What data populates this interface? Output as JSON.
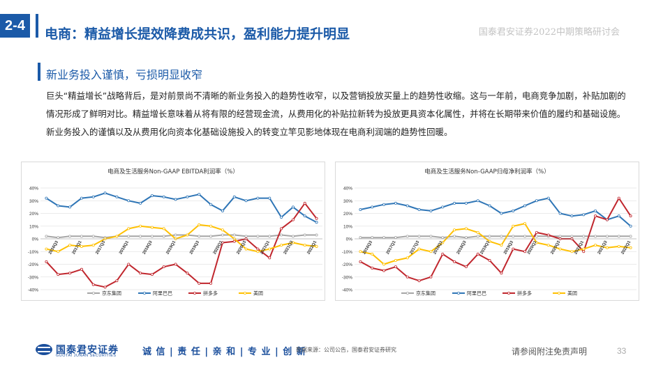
{
  "header": {
    "section": "2-4",
    "title": "电商：精益增长提效降费成共识，盈利能力提升明显",
    "brand": "国泰君安证券2022中期策略研讨会"
  },
  "subtitle": "新业务投入谨慎，亏损明显收窄",
  "body": "巨头“精益增长”战略背后，是对前景尚不清晰的新业务投入的趋势性收窄，以及营销投放买量上的趋势性收缩。这与一年前，电商竞争加剧，补贴加剧的情况形成了鲜明对比。精益增长意味着从将有限的经营现金流，从费用化的补贴拉新转为投放更具资本化属性，并将在长期带来价值的履约和基础设施。新业务投入的谨慎以及从费用化向资本化基础设施投入的转变立竿见影地体现在电商利润端的趋势性回暖。",
  "footer": {
    "logo_name": "国泰君安证券",
    "logo_en": "GUOTAI JUNAN SECURITIES",
    "slogan": "诚 信 | 责 任 | 亲 和 | 专 业 | 创 新",
    "source": "数据来源：公司公告，国泰君安证券研究",
    "disclaimer": "请参阅附注免责声明",
    "page": "33"
  },
  "colors": {
    "brand_blue": "#1b5aa8",
    "jd": "#a6a6a6",
    "alibaba": "#2e75b6",
    "pdd": "#c0262d",
    "meituan": "#ffc000"
  },
  "chart_data": [
    {
      "type": "line",
      "title": "电商及生活服务Non-GAAP EBITDA利润率（%）",
      "categories": [
        "2016Q3",
        "2017Q1",
        "2017Q3",
        "2018Q1",
        "2018Q3",
        "2019Q1",
        "2019Q3",
        "2020Q1",
        "2020Q3",
        "2021Q1",
        "2021Q3",
        "2022Q1"
      ],
      "x": [
        "2016Q2",
        "2016Q3",
        "2016Q4",
        "2017Q1",
        "2017Q2",
        "2017Q3",
        "2017Q4",
        "2018Q1",
        "2018Q2",
        "2018Q3",
        "2018Q4",
        "2019Q1",
        "2019Q2",
        "2019Q3",
        "2019Q4",
        "2020Q1",
        "2020Q2",
        "2020Q3",
        "2020Q4",
        "2021Q1",
        "2021Q2",
        "2021Q3",
        "2021Q4",
        "2022Q1"
      ],
      "ylim": [
        -40,
        40
      ],
      "yticks": [
        "40%",
        "30%",
        "20%",
        "10%",
        "0%",
        "-10%",
        "-20%",
        "-30%",
        "-40%"
      ],
      "series": [
        {
          "name": "京东集团",
          "color": "#a6a6a6",
          "values": [
            2,
            1,
            2,
            2,
            2,
            1,
            2,
            2,
            2,
            2,
            2,
            3,
            3,
            2,
            2,
            3,
            3,
            2,
            2,
            2,
            3,
            2,
            3,
            3
          ]
        },
        {
          "name": "阿里巴巴",
          "color": "#2e75b6",
          "values": [
            32,
            26,
            25,
            32,
            33,
            36,
            33,
            30,
            28,
            34,
            33,
            31,
            33,
            35,
            27,
            22,
            33,
            30,
            32,
            32,
            17,
            25,
            18,
            13
          ]
        },
        {
          "name": "拼多多",
          "color": "#c0262d",
          "values": [
            -18,
            -28,
            -27,
            -24,
            -36,
            -38,
            -33,
            -20,
            -27,
            -28,
            -22,
            -20,
            -27,
            -35,
            -35,
            -3,
            -2,
            0,
            -8,
            -15,
            8,
            15,
            28,
            16
          ]
        },
        {
          "name": "美团",
          "color": "#ffc000",
          "values": [
            -8,
            -10,
            -5,
            -6,
            -5,
            0,
            2,
            8,
            10,
            9,
            8,
            0,
            3,
            11,
            10,
            7,
            0,
            -8,
            -10,
            -8,
            -5,
            -3,
            -5,
            -6
          ]
        }
      ],
      "legend": "bottom"
    },
    {
      "type": "line",
      "title": "电商及生活服务Non-GAAP归母净利润率（%）",
      "categories": [
        "2016Q3",
        "2017Q1",
        "2017Q3",
        "2018Q1",
        "2018Q3",
        "2019Q1",
        "2019Q3",
        "2020Q1",
        "2020Q3",
        "2021Q1",
        "2021Q3",
        "2022Q1"
      ],
      "x": [
        "2016Q2",
        "2016Q3",
        "2016Q4",
        "2017Q1",
        "2017Q2",
        "2017Q3",
        "2017Q4",
        "2018Q1",
        "2018Q2",
        "2018Q3",
        "2018Q4",
        "2019Q1",
        "2019Q2",
        "2019Q3",
        "2019Q4",
        "2020Q1",
        "2020Q2",
        "2020Q3",
        "2020Q4",
        "2021Q1",
        "2021Q2",
        "2021Q3",
        "2021Q4",
        "2022Q1"
      ],
      "ylim": [
        -40,
        40
      ],
      "yticks": [
        "40%",
        "30%",
        "20%",
        "10%",
        "0%",
        "-10%",
        "-20%",
        "-30%",
        "-40%"
      ],
      "series": [
        {
          "name": "京东集团",
          "color": "#a6a6a6",
          "values": [
            1,
            1,
            1,
            1,
            2,
            2,
            2,
            1,
            2,
            1,
            2,
            2,
            2,
            2,
            2,
            2,
            2,
            2,
            2,
            2,
            2,
            2,
            2,
            2
          ]
        },
        {
          "name": "阿里巴巴",
          "color": "#2e75b6",
          "values": [
            23,
            25,
            27,
            28,
            26,
            23,
            22,
            25,
            28,
            28,
            30,
            26,
            20,
            22,
            26,
            30,
            32,
            20,
            18,
            19,
            22,
            15,
            18,
            10
          ]
        },
        {
          "name": "拼多多",
          "color": "#c0262d",
          "values": [
            -18,
            -23,
            -25,
            -22,
            -30,
            -33,
            -30,
            -12,
            -18,
            -22,
            -12,
            -17,
            -27,
            -8,
            -10,
            5,
            3,
            0,
            0,
            -10,
            18,
            15,
            32,
            18
          ]
        },
        {
          "name": "美团",
          "color": "#ffc000",
          "values": [
            -10,
            -12,
            -20,
            -17,
            -15,
            -8,
            -10,
            -3,
            7,
            8,
            5,
            -2,
            -5,
            10,
            12,
            -3,
            -5,
            -8,
            -10,
            -8,
            -5,
            -7,
            -6,
            -7
          ]
        }
      ],
      "legend": "bottom"
    }
  ]
}
